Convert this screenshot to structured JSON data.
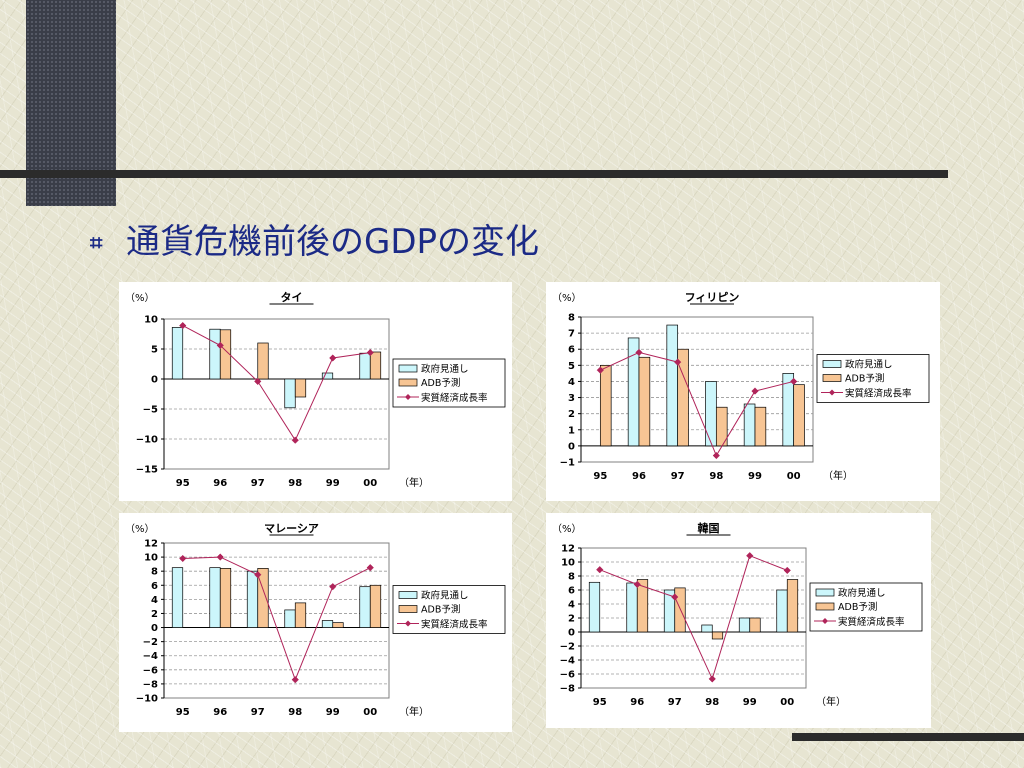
{
  "slide": {
    "bullet": "⌗",
    "title": "通貨危機前後のGDPの変化"
  },
  "colors": {
    "title_text": "#1b2a86",
    "bar_gov": "#ccf6fb",
    "bar_adb": "#f7c594",
    "line_growth": "#b0245a"
  },
  "legend": {
    "gov": "政府見通し",
    "adb": "ADB予測",
    "growth": "実質経済成長率"
  },
  "chart_data": [
    {
      "type": "bar",
      "title": "タイ",
      "unit_label": "（%）",
      "year_label": "（年）",
      "categories": [
        "95",
        "96",
        "97",
        "98",
        "99",
        "00"
      ],
      "ylim": [
        -15,
        10
      ],
      "yticks": [
        10,
        5,
        0,
        -5,
        -10,
        -15
      ],
      "series": [
        {
          "name": "政府見通し",
          "kind": "bar",
          "values": [
            8.6,
            8.3,
            null,
            -4.8,
            1.0,
            4.3
          ]
        },
        {
          "name": "ADB予測",
          "kind": "bar",
          "values": [
            null,
            8.2,
            6.0,
            -3.0,
            null,
            4.5
          ]
        },
        {
          "name": "実質経済成長率",
          "kind": "line",
          "values": [
            8.9,
            5.6,
            -0.4,
            -10.2,
            3.5,
            4.4
          ]
        }
      ]
    },
    {
      "type": "bar",
      "title": "フィリピン",
      "unit_label": "（%）",
      "year_label": "（年）",
      "categories": [
        "95",
        "96",
        "97",
        "98",
        "99",
        "00"
      ],
      "ylim": [
        -1,
        8
      ],
      "yticks": [
        8,
        7,
        6,
        5,
        4,
        3,
        2,
        1,
        0,
        -1
      ],
      "series": [
        {
          "name": "政府見通し",
          "kind": "bar",
          "values": [
            null,
            6.7,
            7.5,
            4.0,
            2.6,
            4.5
          ]
        },
        {
          "name": "ADB予測",
          "kind": "bar",
          "values": [
            5.0,
            5.5,
            6.0,
            2.4,
            2.4,
            3.8
          ]
        },
        {
          "name": "実質経済成長率",
          "kind": "line",
          "values": [
            4.7,
            5.8,
            5.2,
            -0.6,
            3.4,
            4.0
          ]
        }
      ]
    },
    {
      "type": "bar",
      "title": "マレーシア",
      "unit_label": "（%）",
      "year_label": "（年）",
      "categories": [
        "95",
        "96",
        "97",
        "98",
        "99",
        "00"
      ],
      "ylim": [
        -10,
        12
      ],
      "yticks": [
        12,
        10,
        8,
        6,
        4,
        2,
        0,
        -2,
        -4,
        -6,
        -8,
        -10
      ],
      "series": [
        {
          "name": "政府見通し",
          "kind": "bar",
          "values": [
            8.5,
            8.5,
            8.0,
            2.5,
            1.0,
            5.8
          ]
        },
        {
          "name": "ADB予測",
          "kind": "bar",
          "values": [
            null,
            8.4,
            8.4,
            3.5,
            0.7,
            6.0
          ]
        },
        {
          "name": "実質経済成長率",
          "kind": "line",
          "values": [
            9.8,
            10.0,
            7.5,
            -7.4,
            5.8,
            8.5
          ]
        }
      ]
    },
    {
      "type": "bar",
      "title": "韓国",
      "unit_label": "（%）",
      "year_label": "（年）",
      "categories": [
        "95",
        "96",
        "97",
        "98",
        "99",
        "00"
      ],
      "ylim": [
        -8,
        12
      ],
      "yticks": [
        12,
        10,
        8,
        6,
        4,
        2,
        0,
        -2,
        -4,
        -6,
        -8
      ],
      "series": [
        {
          "name": "政府見通し",
          "kind": "bar",
          "values": [
            7.1,
            7.0,
            6.0,
            1.0,
            2.0,
            6.0
          ]
        },
        {
          "name": "ADB予測",
          "kind": "bar",
          "values": [
            null,
            7.5,
            6.3,
            -1.0,
            2.0,
            7.5
          ]
        },
        {
          "name": "実質経済成長率",
          "kind": "line",
          "values": [
            8.9,
            6.8,
            5.0,
            -6.7,
            10.9,
            8.8
          ]
        }
      ]
    }
  ]
}
